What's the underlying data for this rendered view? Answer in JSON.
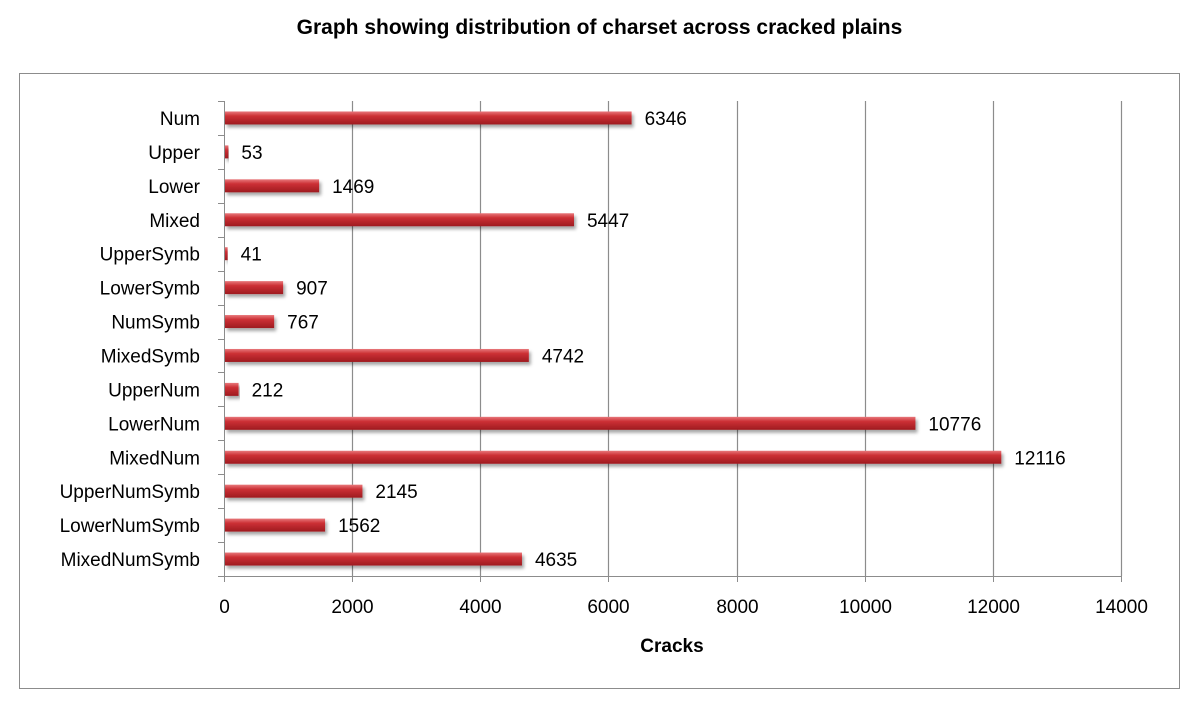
{
  "chart_data": {
    "type": "bar",
    "orientation": "horizontal",
    "title": "Graph showing distribution of charset across cracked plains",
    "xlabel": "Cracks",
    "ylabel": "",
    "categories": [
      "Num",
      "Upper",
      "Lower",
      "Mixed",
      "UpperSymb",
      "LowerSymb",
      "NumSymb",
      "MixedSymb",
      "UpperNum",
      "LowerNum",
      "MixedNum",
      "UpperNumSymb",
      "LowerNumSymb",
      "MixedNumSymb"
    ],
    "values": [
      6346,
      53,
      1469,
      5447,
      41,
      907,
      767,
      4742,
      212,
      10776,
      12116,
      2145,
      1562,
      4635
    ],
    "data_labels": [
      "6346",
      "53",
      "1469",
      "5447",
      "41",
      "907",
      "767",
      "4742",
      "212",
      "10776",
      "12116",
      "2145",
      "1562",
      "4635"
    ],
    "xlim": [
      0,
      14000
    ],
    "xticks": [
      0,
      2000,
      4000,
      6000,
      8000,
      10000,
      12000,
      14000
    ],
    "xtick_labels": [
      "0",
      "2000",
      "4000",
      "6000",
      "8000",
      "10000",
      "12000",
      "14000"
    ],
    "grid": "vertical",
    "legend": "none",
    "bar_color": "#c0272d"
  }
}
